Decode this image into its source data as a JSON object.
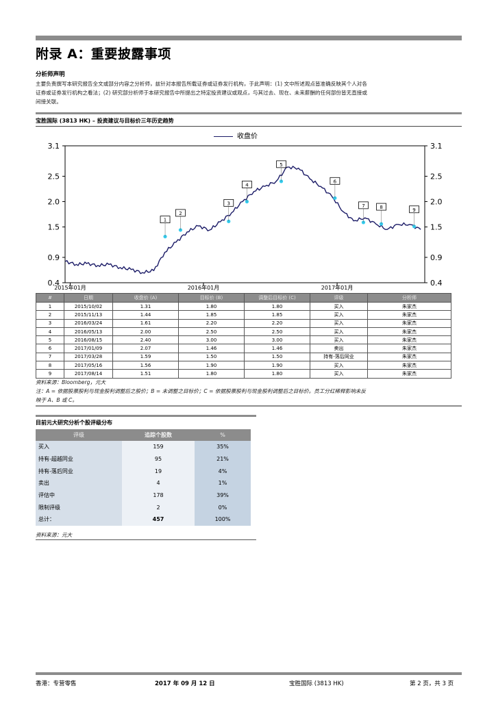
{
  "header": {
    "title": "附录 A：重要披露事项"
  },
  "analyst": {
    "heading": "分析师声明",
    "lines": [
      "主要负责撰写本研究报告全文或部分内容之分析师，兹针对本报告所载证券或证券发行机构，于此声明：(1) 文中所述观点皆准确反映其个人对各",
      "证券或证券发行机构之看法；(2) 研究部分析师于本研究报告中所提出之特定投资建议或观点，与其过去、现在、未来薪酬的任何部份皆无直接或",
      "间接关联。"
    ]
  },
  "chart_section": {
    "title": "宝胜国际 (3813 HK) – 投资建议与目标价三年历史趋势"
  },
  "chart_data": {
    "type": "line",
    "series": [
      {
        "name": "收盘价",
        "dates": [
          "2015-01",
          "2015-02",
          "2015-03",
          "2015-04",
          "2015-05",
          "2015-06",
          "2015-07",
          "2015-08",
          "2015-09",
          "2015-10",
          "2015-11",
          "2015-12",
          "2016-01",
          "2016-02",
          "2016-03",
          "2016-04",
          "2016-05",
          "2016-06",
          "2016-07",
          "2016-08",
          "2016-09",
          "2016-10",
          "2016-11",
          "2016-12",
          "2017-01",
          "2017-02",
          "2017-03",
          "2017-04",
          "2017-05",
          "2017-06",
          "2017-07",
          "2017-08",
          "2017-09"
        ],
        "values": [
          0.82,
          0.76,
          0.78,
          0.74,
          0.76,
          0.7,
          0.66,
          0.6,
          0.64,
          1.0,
          1.2,
          1.4,
          1.52,
          1.44,
          1.6,
          1.78,
          2.0,
          2.2,
          2.3,
          2.4,
          2.68,
          2.66,
          2.45,
          2.3,
          2.1,
          1.8,
          1.62,
          1.68,
          1.56,
          1.45,
          1.55,
          1.55,
          1.45
        ]
      }
    ],
    "markers": [
      {
        "label": "1",
        "date": "2015-10-02",
        "price": 1.31
      },
      {
        "label": "2",
        "date": "2015-11-13",
        "price": 1.44
      },
      {
        "label": "3",
        "date": "2016-03-24",
        "price": 1.61
      },
      {
        "label": "4",
        "date": "2016-05-13",
        "price": 2.0
      },
      {
        "label": "5",
        "date": "2016-08-15",
        "price": 2.4
      },
      {
        "label": "6",
        "date": "2017-01-09",
        "price": 2.07
      },
      {
        "label": "7",
        "date": "2017-03-28",
        "price": 1.59
      },
      {
        "label": "8",
        "date": "2017-05-16",
        "price": 1.56
      },
      {
        "label": "9",
        "date": "2017-08-14",
        "price": 1.51
      }
    ],
    "y_ticks": [
      "3.1",
      "2.5",
      "2.0",
      "1.5",
      "0.9",
      "0.4"
    ],
    "ylim": [
      0.4,
      3.1
    ],
    "x_ticks": [
      "2015年01月",
      "2016年01月",
      "2017年01月"
    ],
    "legend": "收盘价",
    "legend_position": "top-center",
    "line_color": "#1a1a66",
    "marker_color": "#33ccee"
  },
  "history_table": {
    "headers": [
      "#",
      "日期",
      "收盘价 (A)",
      "目标价 (B)",
      "调整后目标价 (C)",
      "评级",
      "分析师"
    ],
    "rows": [
      [
        "1",
        "2015/10/02",
        "1.31",
        "1.80",
        "1.80",
        "买入",
        "朱家杰"
      ],
      [
        "2",
        "2015/11/13",
        "1.44",
        "1.85",
        "1.85",
        "买入",
        "朱家杰"
      ],
      [
        "3",
        "2016/03/24",
        "1.61",
        "2.20",
        "2.20",
        "买入",
        "朱家杰"
      ],
      [
        "4",
        "2016/05/13",
        "2.00",
        "2.50",
        "2.50",
        "买入",
        "朱家杰"
      ],
      [
        "5",
        "2016/08/15",
        "2.40",
        "3.00",
        "3.00",
        "买入",
        "朱家杰"
      ],
      [
        "6",
        "2017/01/09",
        "2.07",
        "1.46",
        "1.46",
        "卖出",
        "朱家杰"
      ],
      [
        "7",
        "2017/03/28",
        "1.59",
        "1.50",
        "1.50",
        "持有-落后同业",
        "朱家杰"
      ],
      [
        "8",
        "2017/05/16",
        "1.56",
        "1.90",
        "1.90",
        "买入",
        "朱家杰"
      ],
      [
        "9",
        "2017/08/14",
        "1.51",
        "1.80",
        "1.80",
        "买入",
        "朱家杰"
      ]
    ],
    "source": "资料来源：Bloomberg，元大",
    "note_line1": "注：A = 依据股票股利与现金股利调整后之股价；B = 未调整之目标价；C = 依据股票股利与现金股利调整后之目标价。员工分红稀释影响未反",
    "note_line2": "映于 A、B 或 C。"
  },
  "distribution": {
    "title": "目前元大研究分析个股评级分布",
    "headers": [
      "评级",
      "追踪个股数",
      "%"
    ],
    "rows": [
      [
        "买入",
        "159",
        "35%"
      ],
      [
        "持有-超越同业",
        "95",
        "21%"
      ],
      [
        "持有-落后同业",
        "19",
        "4%"
      ],
      [
        "卖出",
        "4",
        "1%"
      ],
      [
        "评估中",
        "178",
        "39%"
      ],
      [
        "限制评级",
        "2",
        "0%"
      ]
    ],
    "total": [
      "总计：",
      "457",
      "100%"
    ],
    "source": "资料来源：元大"
  },
  "footer": {
    "left": "香港：专营零售",
    "date": "2017 年 09 月 12 日",
    "center": "宝胜国际 (3813 HK)",
    "page": "第 2 页，共 3 页"
  }
}
